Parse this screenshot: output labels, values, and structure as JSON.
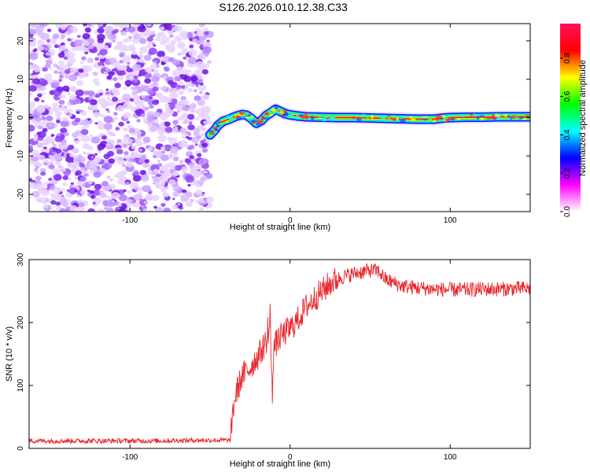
{
  "title": "S126.2026.010.12.38.C33",
  "chart_data": [
    {
      "type": "heatmap",
      "xlabel": "Height of straight line (km)",
      "ylabel": "Frequency (Hz)",
      "xlim": [
        -163,
        150
      ],
      "ylim": [
        -24.5,
        24.5
      ],
      "xticks": [
        -100,
        0,
        100
      ],
      "yticks": [
        -20,
        -10,
        0,
        10,
        20
      ],
      "noise_region_x": [
        -163,
        -50
      ],
      "trace": {
        "x": [
          -50,
          -47,
          -45,
          -42,
          -38,
          -34,
          -30,
          -27,
          -24,
          -21,
          -18,
          -15,
          -12,
          -9,
          -6,
          -3,
          0,
          5,
          10,
          20,
          30,
          40,
          50,
          60,
          70,
          80,
          90,
          96,
          100,
          110,
          120,
          130,
          140,
          150
        ],
        "y": [
          -4.5,
          -3.2,
          -2.0,
          -1.0,
          -0.4,
          0.3,
          0.8,
          0.6,
          -0.3,
          -1.5,
          -0.8,
          0.5,
          1.3,
          2.2,
          1.6,
          1.0,
          0.7,
          0.4,
          0.2,
          0.1,
          0.0,
          0.0,
          -0.1,
          -0.2,
          -0.3,
          -0.4,
          -0.4,
          -0.1,
          0.0,
          0.1,
          0.1,
          0.2,
          0.2,
          0.2
        ]
      },
      "colorbar": {
        "label": "Normalized spectral amplitude",
        "ticks": [
          "0.0",
          "0.2",
          "0.4",
          "0.6",
          "0.8"
        ],
        "tick_values": [
          0.0,
          0.2,
          0.4,
          0.6,
          0.8
        ],
        "range": [
          0,
          0.98
        ],
        "stops": [
          "#ffffff",
          "#ff00ff",
          "#0000ff",
          "#00ffff",
          "#00ff00",
          "#ffff00",
          "#ff0000",
          "#ff1060"
        ]
      }
    },
    {
      "type": "line",
      "xlabel": "Height of straight line (km)",
      "ylabel": "SNR (10 * v/v)",
      "xlim": [
        -163,
        150
      ],
      "ylim": [
        0,
        300
      ],
      "xticks": [
        -100,
        0,
        100
      ],
      "yticks": [
        0,
        100,
        200,
        300
      ],
      "color": "#e8252b",
      "series": [
        {
          "name": "SNR",
          "x": [
            -163,
            -150,
            -140,
            -120,
            -100,
            -80,
            -60,
            -45,
            -37,
            -36,
            -34,
            -32,
            -30,
            -28,
            -25,
            -22,
            -19,
            -16,
            -13,
            -12,
            -11,
            -10,
            -8,
            -5,
            0,
            5,
            10,
            15,
            20,
            25,
            30,
            40,
            50,
            55,
            60,
            70,
            80,
            90,
            100,
            110,
            120,
            130,
            140,
            150
          ],
          "y": [
            12,
            12,
            12,
            12,
            12,
            12,
            13,
            13,
            13,
            55,
            85,
            100,
            115,
            120,
            128,
            140,
            150,
            165,
            180,
            200,
            120,
            160,
            170,
            180,
            190,
            205,
            225,
            238,
            250,
            262,
            270,
            278,
            283,
            282,
            268,
            258,
            255,
            253,
            252,
            252,
            253,
            253,
            254,
            254
          ]
        }
      ]
    }
  ]
}
